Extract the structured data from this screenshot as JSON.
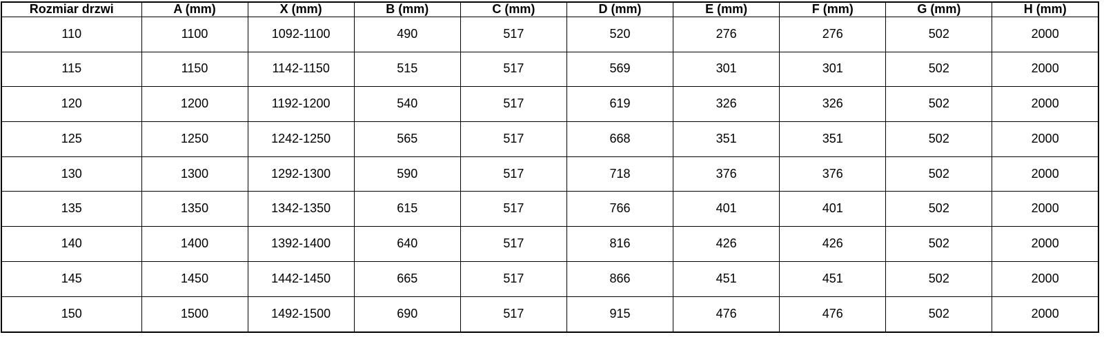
{
  "table": {
    "name": "door-size-specification-table",
    "columns": [
      "Rozmiar drzwi",
      "A (mm)",
      "X (mm)",
      "B (mm)",
      "C (mm)",
      "D (mm)",
      "E (mm)",
      "F (mm)",
      "G (mm)",
      "H (mm)"
    ],
    "rows": [
      [
        "110",
        "1100",
        "1092-1100",
        "490",
        "517",
        "520",
        "276",
        "276",
        "502",
        "2000"
      ],
      [
        "115",
        "1150",
        "1142-1150",
        "515",
        "517",
        "569",
        "301",
        "301",
        "502",
        "2000"
      ],
      [
        "120",
        "1200",
        "1192-1200",
        "540",
        "517",
        "619",
        "326",
        "326",
        "502",
        "2000"
      ],
      [
        "125",
        "1250",
        "1242-1250",
        "565",
        "517",
        "668",
        "351",
        "351",
        "502",
        "2000"
      ],
      [
        "130",
        "1300",
        "1292-1300",
        "590",
        "517",
        "718",
        "376",
        "376",
        "502",
        "2000"
      ],
      [
        "135",
        "1350",
        "1342-1350",
        "615",
        "517",
        "766",
        "401",
        "401",
        "502",
        "2000"
      ],
      [
        "140",
        "1400",
        "1392-1400",
        "640",
        "517",
        "816",
        "426",
        "426",
        "502",
        "2000"
      ],
      [
        "145",
        "1450",
        "1442-1450",
        "665",
        "517",
        "866",
        "451",
        "451",
        "502",
        "2000"
      ],
      [
        "150",
        "1500",
        "1492-1500",
        "690",
        "517",
        "915",
        "476",
        "476",
        "502",
        "2000"
      ]
    ],
    "colors": {
      "border": "#000000",
      "text": "#000000",
      "background": "#ffffff"
    }
  }
}
